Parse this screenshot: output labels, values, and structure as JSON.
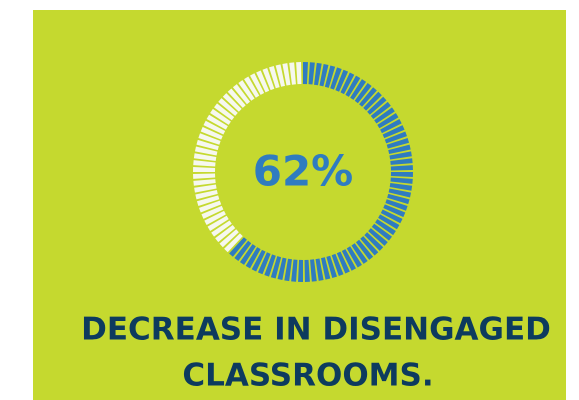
{
  "chart_data": {
    "type": "donut",
    "values": [
      62
    ],
    "value_labels": [
      "62%"
    ],
    "color": "#2f7cc0",
    "ylim": [
      0,
      100
    ],
    "caption": [
      "DECREASE IN DISENGAGED",
      "CLASSROOMS."
    ]
  }
}
